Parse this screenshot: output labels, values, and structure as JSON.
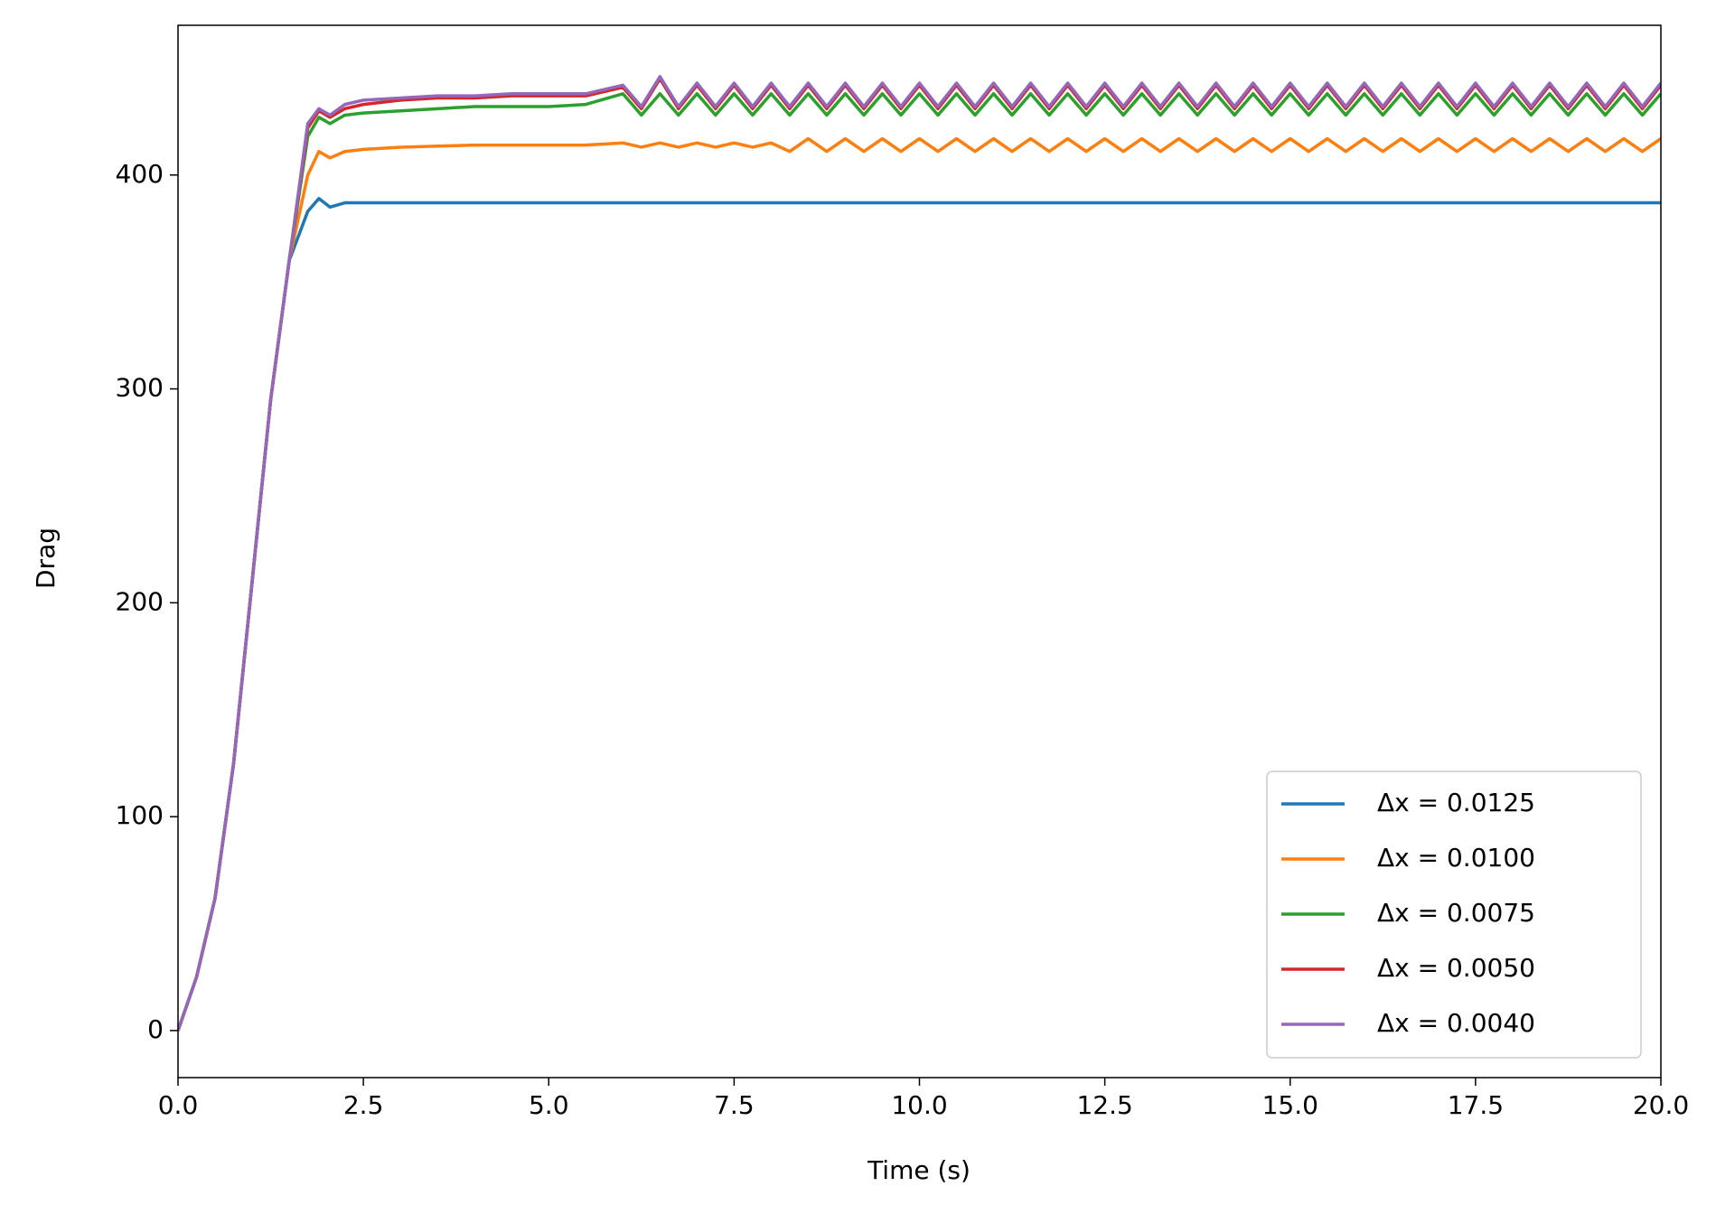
{
  "chart_data": {
    "type": "line",
    "x_label": "Time (s)",
    "y_label": "Drag",
    "x": [
      0,
      0.25,
      0.5,
      0.75,
      1,
      1.25,
      1.5,
      1.75,
      1.9,
      2.05,
      2.25,
      2.5,
      3,
      3.5,
      4,
      4.5,
      5,
      5.5,
      6,
      6.25,
      6.5,
      6.75,
      7,
      7.25,
      7.5,
      7.75,
      8,
      8.25,
      8.5,
      8.75,
      9,
      9.25,
      9.5,
      9.75,
      10,
      10.25,
      10.5,
      10.75,
      11,
      11.25,
      11.5,
      11.75,
      12,
      12.25,
      12.5,
      12.75,
      13,
      13.25,
      13.5,
      13.75,
      14,
      14.25,
      14.5,
      14.75,
      15,
      15.25,
      15.5,
      15.75,
      16,
      16.25,
      16.5,
      16.75,
      17,
      17.25,
      17.5,
      17.75,
      18,
      18.25,
      18.5,
      18.75,
      19,
      19.25,
      19.5,
      19.75,
      20
    ],
    "series": [
      {
        "name": "Δx = 0.0125",
        "color": "#1f77b4",
        "values": [
          0,
          25,
          62,
          125,
          210,
          295,
          360,
          383,
          389,
          385,
          387,
          387,
          387,
          387,
          387,
          387,
          387,
          387,
          387,
          387,
          387,
          387,
          387,
          387,
          387,
          387,
          387,
          387,
          387,
          387,
          387,
          387,
          387,
          387,
          387,
          387,
          387,
          387,
          387,
          387,
          387,
          387,
          387,
          387,
          387,
          387,
          387,
          387,
          387,
          387,
          387,
          387,
          387,
          387,
          387,
          387,
          387,
          387,
          387,
          387,
          387,
          387,
          387,
          387,
          387,
          387,
          387,
          387,
          387,
          387,
          387,
          387,
          387,
          387,
          387
        ]
      },
      {
        "name": "Δx = 0.0100",
        "color": "#ff7f0e",
        "values": [
          0,
          25,
          62,
          125,
          210,
          295,
          360,
          400,
          411,
          408,
          411,
          412,
          413,
          413.5,
          414,
          414,
          414,
          414,
          415,
          413,
          415,
          413,
          415,
          413,
          415,
          413,
          415,
          411,
          417,
          411,
          417,
          411,
          417,
          411,
          417,
          411,
          417,
          411,
          417,
          411,
          417,
          411,
          417,
          411,
          417,
          411,
          417,
          411,
          417,
          411,
          417,
          411,
          417,
          411,
          417,
          411,
          417,
          411,
          417,
          411,
          417,
          411,
          417,
          411,
          417,
          411,
          417,
          411,
          417,
          411,
          417,
          411,
          417,
          411,
          417
        ]
      },
      {
        "name": "Δx = 0.0075",
        "color": "#2ca02c",
        "values": [
          0,
          25,
          62,
          125,
          210,
          295,
          360,
          418,
          427,
          424,
          428,
          429,
          430,
          431,
          432,
          432,
          432,
          433,
          438,
          428,
          438,
          428,
          438,
          428,
          438,
          428,
          438,
          428,
          438,
          428,
          438,
          428,
          438,
          428,
          438,
          428,
          438,
          428,
          438,
          428,
          438,
          428,
          438,
          428,
          438,
          428,
          438,
          428,
          438,
          428,
          438,
          428,
          438,
          428,
          438,
          428,
          438,
          428,
          438,
          428,
          438,
          428,
          438,
          428,
          438,
          428,
          438,
          428,
          438,
          428,
          438,
          428,
          438,
          428,
          438
        ]
      },
      {
        "name": "Δx = 0.0050",
        "color": "#d62728",
        "values": [
          0,
          25,
          62,
          125,
          210,
          295,
          360,
          422,
          430,
          427,
          431,
          433,
          435,
          436,
          436,
          437,
          437,
          437,
          441,
          431,
          445,
          431,
          442,
          431,
          442,
          431,
          442,
          431,
          442,
          431,
          442,
          431,
          442,
          431,
          442,
          431,
          442,
          431,
          442,
          431,
          442,
          431,
          442,
          431,
          442,
          431,
          442,
          431,
          442,
          431,
          442,
          431,
          442,
          431,
          442,
          431,
          442,
          431,
          442,
          431,
          442,
          431,
          442,
          431,
          442,
          431,
          442,
          431,
          442,
          431,
          442,
          431,
          442,
          431,
          442
        ]
      },
      {
        "name": "Δx = 0.0040",
        "color": "#9467bd",
        "values": [
          0,
          25,
          62,
          125,
          210,
          295,
          360,
          424,
          431,
          428,
          433,
          435,
          436,
          437,
          437,
          438,
          438,
          438,
          442,
          432,
          446,
          432,
          443,
          432,
          443,
          432,
          443,
          432,
          443,
          432,
          443,
          432,
          443,
          432,
          443,
          432,
          443,
          432,
          443,
          432,
          443,
          432,
          443,
          432,
          443,
          432,
          443,
          432,
          443,
          432,
          443,
          432,
          443,
          432,
          443,
          432,
          443,
          432,
          443,
          432,
          443,
          432,
          443,
          432,
          443,
          432,
          443,
          432,
          443,
          432,
          443,
          432,
          443,
          432,
          443
        ]
      }
    ],
    "xlim": [
      0,
      20
    ],
    "ylim": [
      -22,
      470
    ],
    "xticks": [
      {
        "value": 0,
        "label": "0.0"
      },
      2.5,
      {
        "value": 5,
        "label": "5.0"
      },
      7.5,
      {
        "value": 10,
        "label": "10.0"
      },
      12.5,
      {
        "value": 15,
        "label": "15.0"
      },
      17.5,
      {
        "value": 20,
        "label": "20.0"
      }
    ],
    "yticks": [
      0,
      100,
      200,
      300,
      400
    ],
    "legend": "lower right",
    "grid": false
  }
}
